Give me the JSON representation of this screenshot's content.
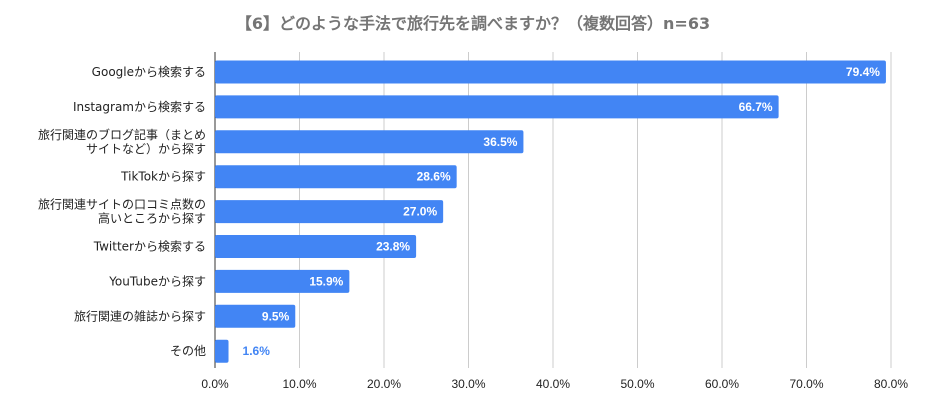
{
  "chart_data": {
    "type": "bar",
    "orientation": "horizontal",
    "title": "【6】どのような手法で旅行先を調べますか？（複数回答）n=63",
    "categories": [
      "Googleから検索する",
      "Instagramから検索する",
      "旅行関連のブログ記事（まとめサイトなど）から探す",
      "TikTokから探す",
      "旅行関連サイトの口コミ点数の高いところから探す",
      "Twitterから検索する",
      "YouTubeから探す",
      "旅行関連の雑誌から探す",
      "その他"
    ],
    "category_lines": [
      [
        "Googleから検索する"
      ],
      [
        "Instagramから検索する"
      ],
      [
        "旅行関連のブログ記事（まとめ",
        "サイトなど）から探す"
      ],
      [
        "TikTokから探す"
      ],
      [
        "旅行関連サイトの口コミ点数の",
        "高いところから探す"
      ],
      [
        "Twitterから検索する"
      ],
      [
        "YouTubeから探す"
      ],
      [
        "旅行関連の雑誌から探す"
      ],
      [
        "その他"
      ]
    ],
    "values": [
      79.4,
      66.7,
      36.5,
      28.6,
      27.0,
      23.8,
      15.9,
      9.5,
      1.6
    ],
    "data_labels": [
      "79.4%",
      "66.7%",
      "36.5%",
      "28.6%",
      "27.0%",
      "23.8%",
      "15.9%",
      "9.5%",
      "1.6%"
    ],
    "xlim": [
      0,
      80
    ],
    "xticks": [
      "0.0%",
      "10.0%",
      "20.0%",
      "30.0%",
      "40.0%",
      "50.0%",
      "60.0%",
      "70.0%",
      "80.0%"
    ],
    "grid": true,
    "bar_color": "#4285f4",
    "grid_color": "#cccccc",
    "label_color": "#222222",
    "title_color": "#757575"
  }
}
